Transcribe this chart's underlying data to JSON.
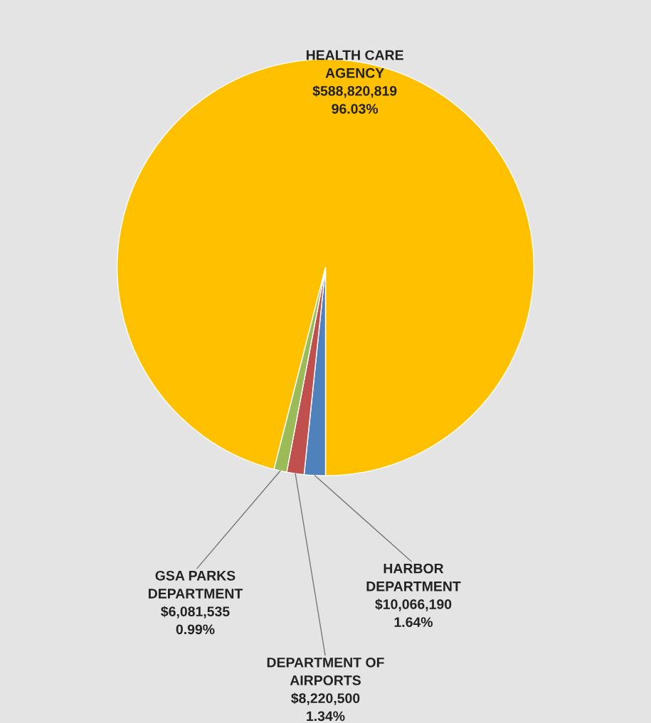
{
  "chart_data": {
    "type": "pie",
    "categories": [
      "HEALTH CARE\nAGENCY",
      "HARBOR\nDEPARTMENT",
      "DEPARTMENT OF\nAIRPORTS",
      "GSA PARKS\nDEPARTMENT"
    ],
    "values": [
      588820819,
      10066190,
      8220500,
      6081535
    ],
    "colors": [
      "#ffc000",
      "#4f81bd",
      "#c0504d",
      "#9bbb59"
    ],
    "value_labels": [
      "$588,820,819\n96.03%",
      "$10,066,190\n1.64%",
      "$8,220,500\n1.34%",
      "$6,081,535\n0.99%"
    ]
  }
}
